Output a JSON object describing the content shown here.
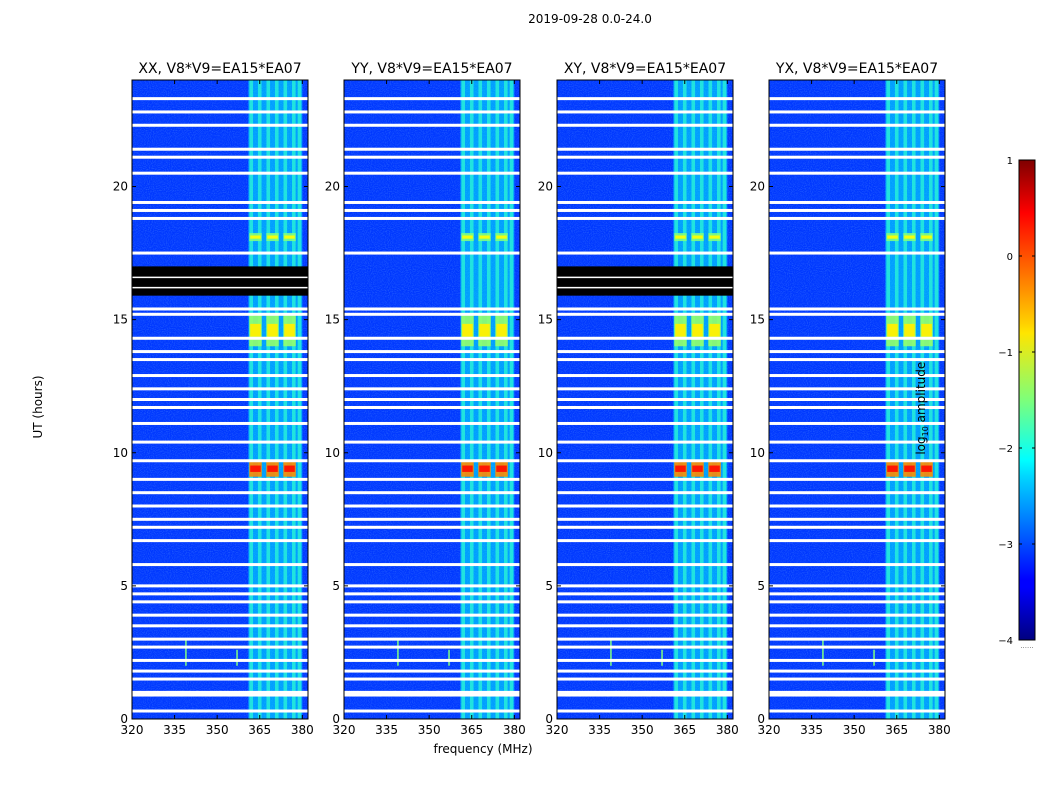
{
  "figure": {
    "suptitle": "2019-09-28 0.0-24.0",
    "ylabel": "UT (hours)",
    "xlabel": "frequency (MHz)",
    "colorbar_label_prefix": "log",
    "colorbar_label_sub": "10",
    "colorbar_label_suffix": " amplitude",
    "colorbar_ticks": [
      "1",
      "0",
      "−1",
      "−2",
      "−3",
      "−4"
    ],
    "colorbar_extra": "......"
  },
  "chart_data": {
    "type": "heatmap",
    "colormap": "jet",
    "value_range": [
      -4,
      1
    ],
    "xlim": [
      320,
      382
    ],
    "ylim": [
      0,
      24
    ],
    "xticks": [
      320,
      335,
      350,
      365,
      380
    ],
    "yticks": [
      0,
      5,
      10,
      15,
      20
    ],
    "xtick_labels": [
      "320",
      "335",
      "350",
      "365",
      "380"
    ],
    "ytick_labels": [
      "0",
      "5",
      "10",
      "15",
      "20"
    ],
    "panels": [
      {
        "title": "XX, V8*V9=EA15*EA07",
        "dark_band_hours": [
          15.9,
          17.0
        ]
      },
      {
        "title": "YY, V8*V9=EA15*EA07",
        "dark_band_hours": []
      },
      {
        "title": "XY, V8*V9=EA15*EA07",
        "dark_band_hours": [
          15.9,
          17.0
        ]
      },
      {
        "title": "YX, V8*V9=EA15*EA07",
        "dark_band_hours": []
      }
    ],
    "flagged_rows_hours": [
      0.3,
      0.9,
      1.0,
      1.5,
      1.8,
      2.2,
      2.7,
      3.0,
      3.5,
      3.9,
      4.4,
      4.7,
      5.0,
      5.8,
      6.7,
      7.2,
      7.5,
      8.0,
      8.5,
      9.0,
      9.7,
      10.4,
      11.1,
      11.7,
      12.0,
      12.4,
      12.9,
      13.5,
      13.8,
      14.3,
      15.2,
      15.4,
      17.5,
      18.8,
      19.1,
      19.4,
      20.5,
      21.1,
      21.4,
      22.3,
      22.8,
      23.3
    ],
    "rfi_channels_mhz": [
      362,
      365,
      368,
      371,
      374,
      377,
      379
    ],
    "rfi_band_mhz": [
      361,
      380
    ],
    "rfi_peak_hours": [
      {
        "center": 9.4,
        "width": 0.6,
        "level": 0.3
      },
      {
        "center": 14.6,
        "width": 1.2,
        "level": -0.8
      },
      {
        "center": 18.1,
        "width": 0.3,
        "level": -0.9
      }
    ],
    "narrowband_spikes": [
      {
        "freq": 339,
        "start": 2.0,
        "end": 3.0
      },
      {
        "freq": 357,
        "start": 2.0,
        "end": 2.6
      }
    ]
  }
}
